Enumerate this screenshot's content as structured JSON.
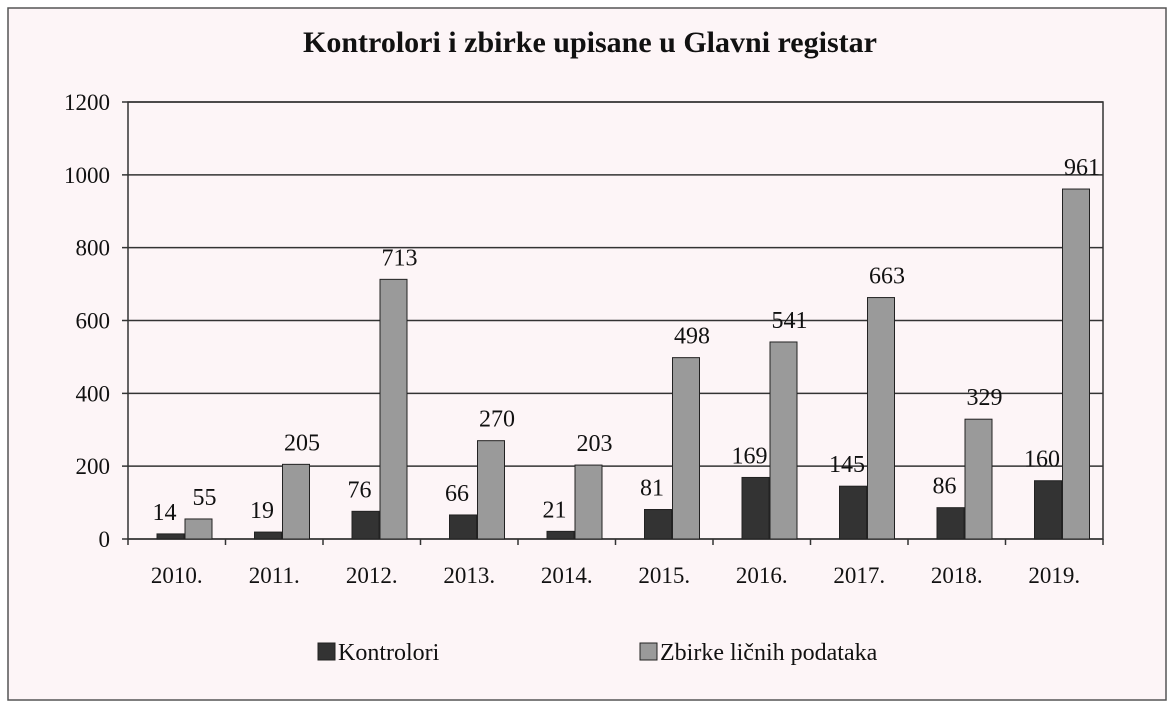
{
  "chart_data": {
    "type": "bar",
    "title": "Kontrolori i zbirke upisane u Glavni registar",
    "categories": [
      "2010.",
      "2011.",
      "2012.",
      "2013.",
      "2014.",
      "2015.",
      "2016.",
      "2017.",
      "2018.",
      "2019."
    ],
    "series": [
      {
        "name": "Kontrolori",
        "color": "#333333",
        "values": [
          14,
          19,
          76,
          66,
          21,
          81,
          169,
          145,
          86,
          160
        ]
      },
      {
        "name": "Zbirke ličnih podataka",
        "color": "#9a9a9a",
        "values": [
          55,
          205,
          713,
          270,
          203,
          498,
          541,
          663,
          329,
          961
        ]
      }
    ],
    "ylim": [
      0,
      1200
    ],
    "yticks": [
      0,
      200,
      400,
      600,
      800,
      1000,
      1200
    ],
    "grid": true,
    "legend": "bottom"
  }
}
